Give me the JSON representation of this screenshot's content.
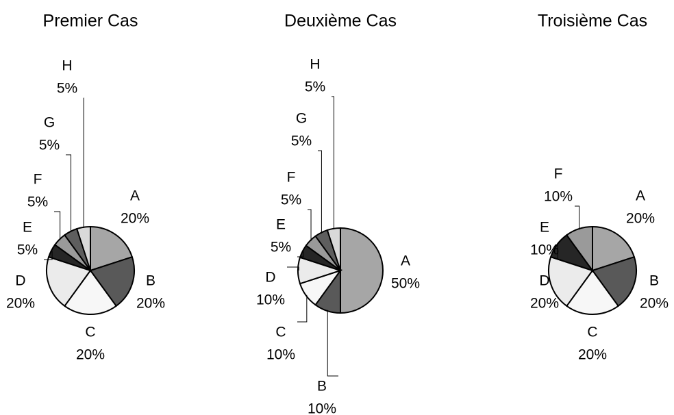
{
  "chart_data": [
    {
      "type": "pie",
      "title": "Premier Cas",
      "categories": [
        "A",
        "B",
        "C",
        "D",
        "E",
        "F",
        "G",
        "H"
      ],
      "values": [
        20,
        20,
        20,
        20,
        5,
        5,
        5,
        5
      ],
      "value_labels": [
        "20%",
        "20%",
        "20%",
        "20%",
        "5%",
        "5%",
        "5%",
        "5%"
      ],
      "colors": [
        "#a6a6a6",
        "#595959",
        "#f7f7f7",
        "#ebebeb",
        "#262626",
        "#9a9a9a",
        "#5e5e5e",
        "#d9d9d9"
      ]
    },
    {
      "type": "pie",
      "title": "Deuxième Cas",
      "categories": [
        "A",
        "B",
        "C",
        "D",
        "E",
        "F",
        "G",
        "H"
      ],
      "values": [
        50,
        10,
        10,
        10,
        5,
        5,
        5,
        5
      ],
      "value_labels": [
        "50%",
        "10%",
        "10%",
        "10%",
        "5%",
        "5%",
        "5%",
        "5%"
      ],
      "colors": [
        "#a6a6a6",
        "#595959",
        "#f7f7f7",
        "#ebebeb",
        "#262626",
        "#9a9a9a",
        "#5e5e5e",
        "#d9d9d9"
      ]
    },
    {
      "type": "pie",
      "title": "Troisième Cas",
      "categories": [
        "A",
        "B",
        "C",
        "D",
        "E",
        "F"
      ],
      "values": [
        20,
        20,
        20,
        20,
        10,
        10
      ],
      "value_labels": [
        "20%",
        "20%",
        "20%",
        "20%",
        "10%",
        "10%"
      ],
      "colors": [
        "#a6a6a6",
        "#595959",
        "#f7f7f7",
        "#ebebeb",
        "#262626",
        "#9a9a9a"
      ]
    }
  ]
}
